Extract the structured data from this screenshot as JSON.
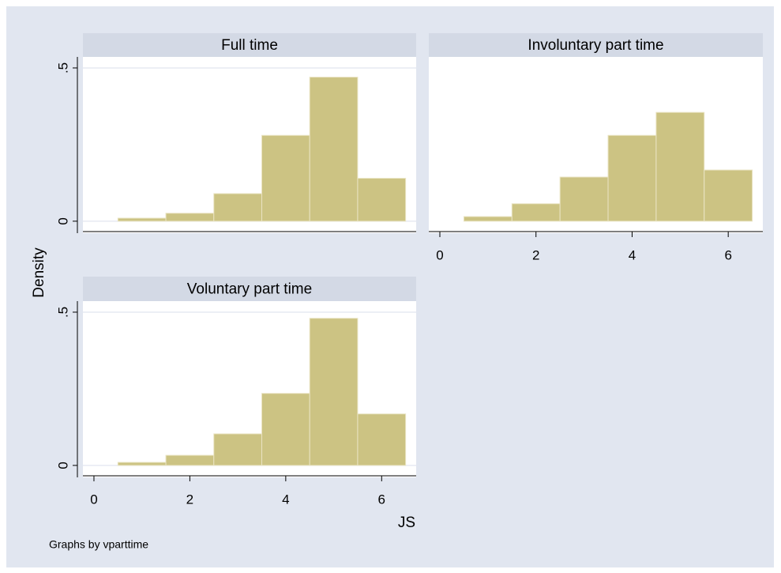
{
  "y_label": "Density",
  "x_label": "JS",
  "note": "Graphs by vparttime",
  "chart_data": [
    {
      "type": "histogram",
      "title": "Full time",
      "bins": [
        0.5,
        1.5,
        2.5,
        3.5,
        4.5,
        5.5,
        6.5
      ],
      "values": [
        0.01,
        0.026,
        0.09,
        0.28,
        0.47,
        0.14
      ],
      "color": "#ccc383",
      "xlim": [
        -0.23,
        6.72
      ],
      "ylim": [
        -0.039,
        0.536
      ],
      "yticks": [
        0,
        {
          "value": 0.5,
          "label": ".5"
        }
      ],
      "grid": true
    },
    {
      "type": "histogram",
      "title": "Involuntary part time",
      "bins": [
        0.5,
        1.5,
        2.5,
        3.5,
        4.5,
        5.5,
        6.5
      ],
      "values": [
        0.015,
        0.057,
        0.144,
        0.28,
        0.355,
        0.167
      ],
      "color": "#ccc383",
      "xlim": [
        -0.23,
        6.72
      ],
      "ylim": [
        -0.039,
        0.536
      ],
      "xticks": [
        0,
        2,
        4,
        6
      ],
      "grid": true
    },
    {
      "type": "histogram",
      "title": "Voluntary part time",
      "bins": [
        0.5,
        1.5,
        2.5,
        3.5,
        4.5,
        5.5,
        6.5
      ],
      "values": [
        0.01,
        0.033,
        0.103,
        0.235,
        0.48,
        0.168
      ],
      "color": "#ccc383",
      "xlim": [
        -0.23,
        6.72
      ],
      "ylim": [
        -0.039,
        0.536
      ],
      "xticks": [
        0,
        2,
        4,
        6
      ],
      "yticks": [
        0,
        {
          "value": 0.5,
          "label": ".5"
        }
      ],
      "grid": true
    }
  ]
}
